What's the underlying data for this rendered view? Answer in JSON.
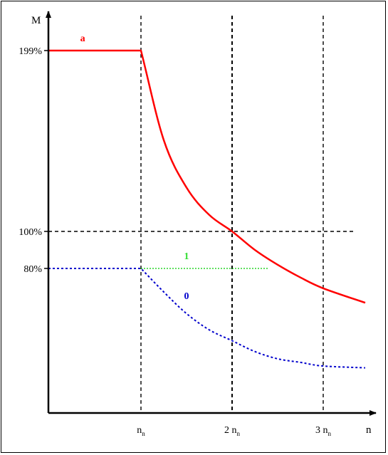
{
  "chart_data": {
    "type": "line",
    "xlabel": "n",
    "ylabel": "M",
    "x_ticks": [
      {
        "value": 1,
        "label": "n",
        "sub": "n"
      },
      {
        "value": 2,
        "label": "2 n",
        "sub": "n"
      },
      {
        "value": 3,
        "label": "3 n",
        "sub": "n"
      }
    ],
    "y_ticks": [
      {
        "value": 199,
        "label": "199%"
      },
      {
        "value": 100,
        "label": "100%"
      },
      {
        "value": 80,
        "label": "80%"
      }
    ],
    "ylim": [
      0,
      214
    ],
    "xlim": [
      0,
      3.45
    ],
    "series": [
      {
        "name": "a",
        "color": "#ff0000",
        "style": "solid",
        "points": [
          [
            0,
            199
          ],
          [
            1,
            199
          ],
          [
            1.25,
            150
          ],
          [
            1.5,
            124
          ],
          [
            1.75,
            109
          ],
          [
            2,
            100
          ],
          [
            2.25,
            90
          ],
          [
            2.5,
            82
          ],
          [
            2.75,
            75
          ],
          [
            3,
            69
          ],
          [
            3.45,
            61
          ]
        ]
      },
      {
        "name": "1",
        "color": "#00cc00",
        "style": "dotted",
        "points": [
          [
            1,
            80
          ],
          [
            2.4,
            80
          ]
        ]
      },
      {
        "name": "0",
        "color": "#0000cc",
        "style": "dotted",
        "points": [
          [
            0,
            80
          ],
          [
            1,
            80
          ],
          [
            1.25,
            67
          ],
          [
            1.5,
            55
          ],
          [
            1.75,
            46
          ],
          [
            2,
            40
          ],
          [
            2.25,
            34
          ],
          [
            2.5,
            30
          ],
          [
            2.75,
            28
          ],
          [
            3,
            26
          ],
          [
            3.45,
            25
          ]
        ]
      }
    ],
    "series_labels": [
      {
        "text": "a",
        "color": "#ff0000",
        "x": 0.37,
        "y": 204
      },
      {
        "text": "1",
        "color": "#33dd33",
        "x": 1.5,
        "y": 85
      },
      {
        "text": "0",
        "color": "#0000cc",
        "x": 1.5,
        "y": 63
      }
    ],
    "reference_lines": {
      "vertical": [
        1,
        2,
        3
      ],
      "horizontal": [
        100
      ]
    },
    "grid": false
  }
}
